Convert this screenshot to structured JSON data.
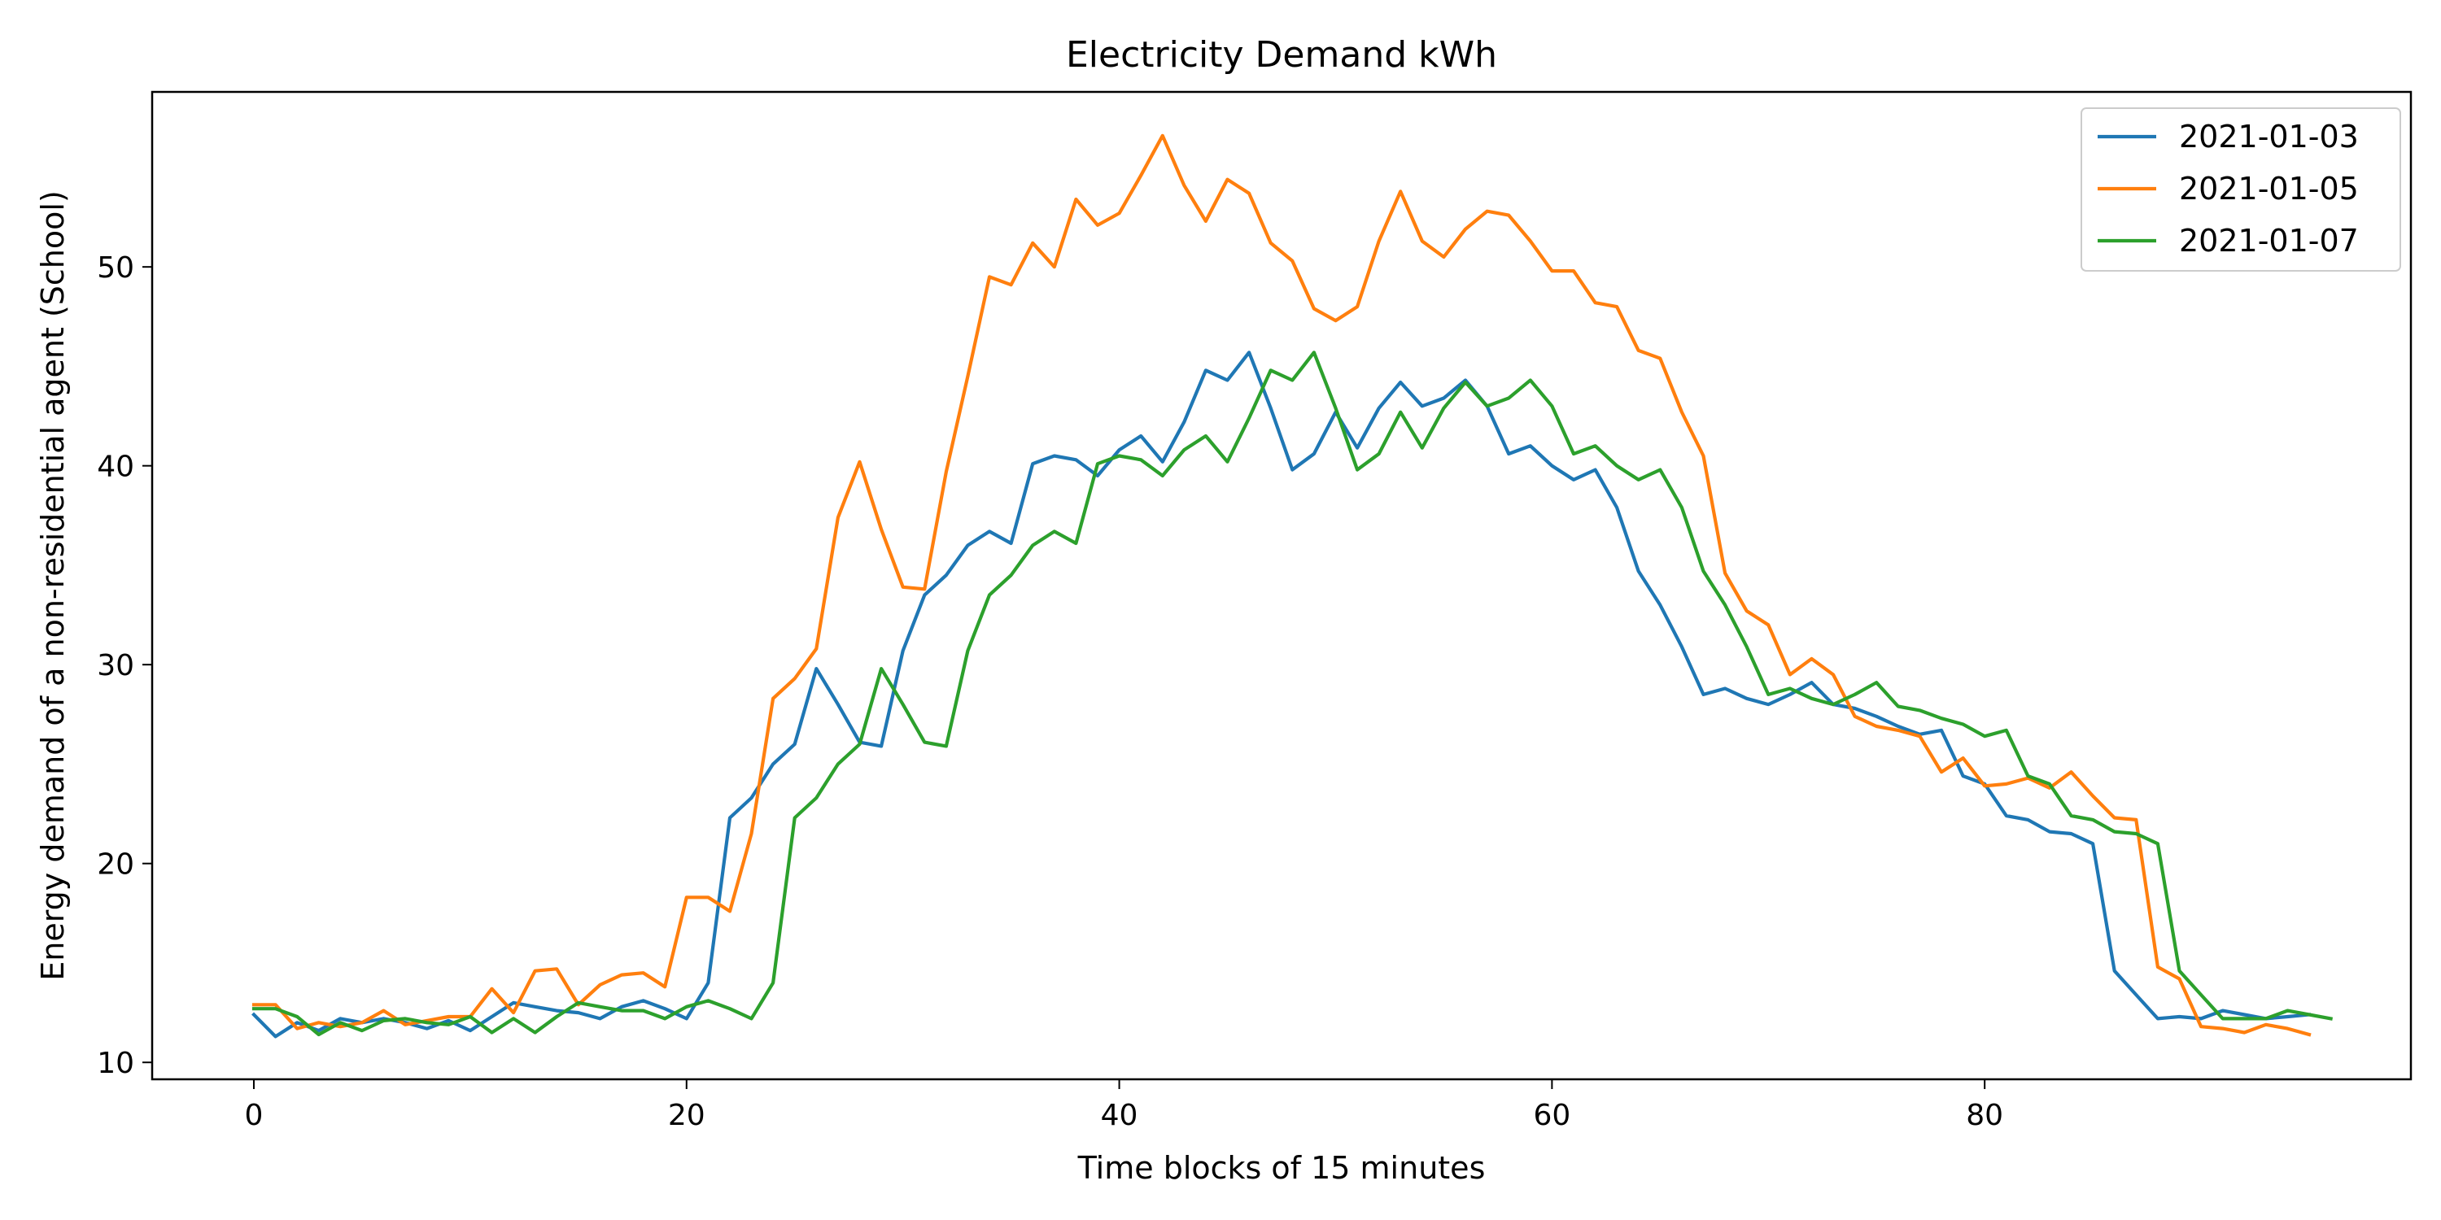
{
  "chart_data": {
    "type": "line",
    "title": "Electricity Demand kWh",
    "xlabel": "Time blocks of 15 minutes",
    "ylabel": "Energy demand of a non-residential agent (School)",
    "xlim": [
      -4.7,
      99.7
    ],
    "ylim": [
      9.15,
      58.8
    ],
    "xticks": [
      0,
      20,
      40,
      60,
      80
    ],
    "yticks": [
      10,
      20,
      30,
      40,
      50
    ],
    "grid": false,
    "legend_position": "top-right",
    "series": [
      {
        "name": "2021-01-03",
        "color": "#1f77b4",
        "values": [
          12.4,
          11.3,
          12.0,
          11.6,
          12.2,
          12.0,
          12.2,
          12.0,
          11.7,
          12.1,
          11.6,
          12.3,
          13.0,
          12.8,
          12.6,
          12.5,
          12.2,
          12.8,
          13.1,
          12.7,
          12.2,
          14.0,
          22.3,
          23.3,
          25.0,
          26.0,
          29.8,
          28.0,
          26.1,
          25.9,
          30.7,
          33.5,
          34.5,
          36.0,
          36.7,
          36.1,
          40.1,
          40.5,
          40.3,
          39.5,
          40.8,
          41.5,
          40.2,
          42.2,
          44.8,
          44.3,
          45.7,
          42.9,
          39.8,
          40.6,
          42.7,
          40.9,
          42.9,
          44.2,
          43.0,
          43.4,
          44.3,
          43.0,
          40.6,
          41.0,
          40.0,
          39.3,
          39.8,
          37.9,
          34.7,
          33.0,
          30.9,
          28.5,
          28.8,
          28.3,
          28.0,
          28.5,
          29.1,
          28.0,
          27.8,
          27.4,
          26.9,
          26.5,
          26.7,
          24.4,
          24.0,
          22.4,
          22.2,
          21.6,
          21.5,
          21.0,
          14.6,
          13.4,
          12.2,
          12.3,
          12.2,
          12.6,
          12.4,
          12.2,
          12.3,
          12.4
        ]
      },
      {
        "name": "2021-01-05",
        "color": "#ff7f0e",
        "values": [
          12.9,
          12.9,
          11.7,
          12.0,
          11.8,
          12.0,
          12.6,
          11.9,
          12.1,
          12.3,
          12.3,
          13.7,
          12.5,
          14.6,
          14.7,
          12.9,
          13.9,
          14.4,
          14.5,
          13.8,
          18.3,
          18.3,
          17.6,
          21.5,
          28.3,
          29.3,
          30.8,
          37.4,
          40.2,
          36.8,
          33.9,
          33.8,
          39.7,
          44.5,
          49.5,
          49.1,
          51.2,
          50.0,
          53.4,
          52.1,
          52.7,
          54.6,
          56.6,
          54.1,
          52.3,
          54.4,
          53.7,
          51.2,
          50.3,
          47.9,
          47.3,
          48.0,
          51.3,
          53.8,
          51.3,
          50.5,
          51.9,
          52.8,
          52.6,
          51.3,
          49.8,
          49.8,
          48.2,
          48.0,
          45.8,
          45.4,
          42.7,
          40.5,
          34.6,
          32.7,
          32.0,
          29.5,
          30.3,
          29.5,
          27.4,
          26.9,
          26.7,
          26.4,
          24.6,
          25.3,
          23.9,
          24.0,
          24.3,
          23.8,
          24.6,
          23.4,
          22.3,
          22.2,
          14.8,
          14.2,
          11.8,
          11.7,
          11.5,
          11.9,
          11.7,
          11.4
        ]
      },
      {
        "name": "2021-01-07",
        "color": "#2ca02c",
        "values": [
          12.7,
          12.7,
          12.3,
          11.4,
          12.0,
          11.6,
          12.1,
          12.2,
          12.0,
          11.9,
          12.3,
          11.5,
          12.2,
          11.5,
          12.3,
          13.0,
          12.8,
          12.6,
          12.6,
          12.2,
          12.8,
          13.1,
          12.7,
          12.2,
          14.0,
          22.3,
          23.3,
          25.0,
          26.0,
          29.8,
          28.0,
          26.1,
          25.9,
          30.7,
          33.5,
          34.5,
          36.0,
          36.7,
          36.1,
          40.1,
          40.5,
          40.3,
          39.5,
          40.8,
          41.5,
          40.2,
          42.4,
          44.8,
          44.3,
          45.7,
          42.9,
          39.8,
          40.6,
          42.7,
          40.9,
          42.9,
          44.2,
          43.0,
          43.4,
          44.3,
          43.0,
          40.6,
          41.0,
          40.0,
          39.3,
          39.8,
          37.9,
          34.7,
          33.0,
          30.9,
          28.5,
          28.8,
          28.3,
          28.0,
          28.5,
          29.1,
          27.9,
          27.7,
          27.3,
          27.0,
          26.4,
          26.7,
          24.4,
          24.0,
          22.4,
          22.2,
          21.6,
          21.5,
          21.0,
          14.6,
          13.4,
          12.2,
          12.2,
          12.2,
          12.6,
          12.4,
          12.2
        ]
      }
    ]
  }
}
